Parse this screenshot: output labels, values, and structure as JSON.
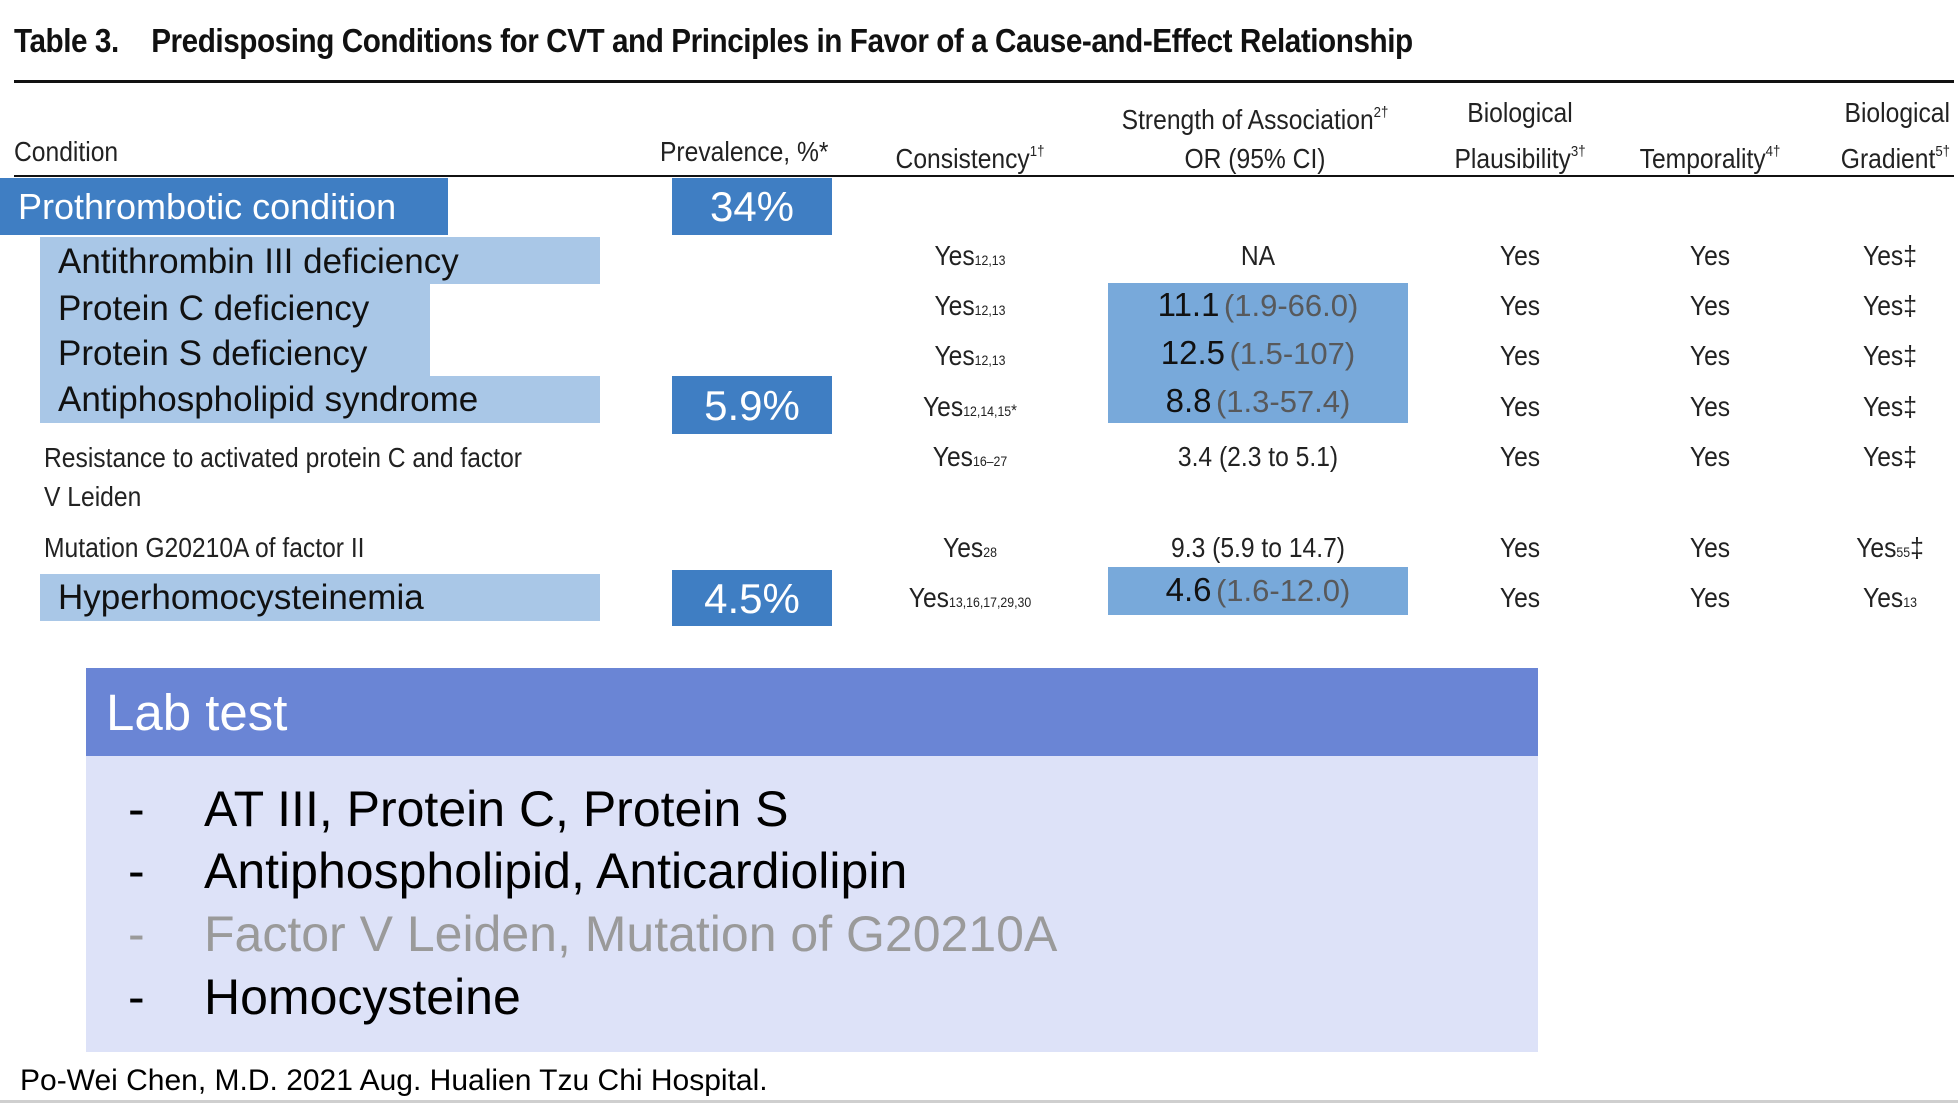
{
  "table": {
    "number": "Table 3.",
    "title": "Predisposing Conditions for CVT and Principles in Favor of a Cause-and-Effect Relationship"
  },
  "headers": {
    "condition": "Condition",
    "prevalence": "Prevalence, %*",
    "consistency": "Consistency",
    "consistency_mark": "1†",
    "strength_line1": "Strength of Association",
    "strength_mark": "2†",
    "strength_line2": "OR (95% CI)",
    "plausibility_line1": "Biological",
    "plausibility_line2": "Plausibility",
    "plausibility_mark": "3†",
    "temporality": "Temporality",
    "temporality_mark": "4†",
    "gradient_line1": "Biological",
    "gradient_line2": "Gradient",
    "gradient_mark": "5†"
  },
  "group": {
    "label": "Prothrombotic condition",
    "prevalence": "34%"
  },
  "rows": [
    {
      "condition": "Antithrombin III deficiency",
      "consistency": "Yes",
      "consistency_refs": "12,13",
      "or": "NA",
      "or_ci": "",
      "plausibility": "Yes",
      "temporality": "Yes",
      "gradient": "Yes‡",
      "gradient_refs": ""
    },
    {
      "condition": "Protein C deficiency",
      "consistency": "Yes",
      "consistency_refs": "12,13",
      "or": "11.1",
      "or_ci": "(1.9-66.0)",
      "plausibility": "Yes",
      "temporality": "Yes",
      "gradient": "Yes‡",
      "gradient_refs": ""
    },
    {
      "condition": "Protein S deficiency",
      "consistency": "Yes",
      "consistency_refs": "12,13",
      "or": "12.5",
      "or_ci": "(1.5-107)",
      "plausibility": "Yes",
      "temporality": "Yes",
      "gradient": "Yes‡",
      "gradient_refs": ""
    },
    {
      "condition": "Antiphospholipid syndrome",
      "prevalence": "5.9%",
      "consistency": "Yes",
      "consistency_refs": "12,14,15",
      "consistency_mark": "*",
      "or": "8.8",
      "or_ci": "(1.3-57.4)",
      "plausibility": "Yes",
      "temporality": "Yes",
      "gradient": "Yes‡",
      "gradient_refs": ""
    },
    {
      "condition_line1": "Resistance to activated protein C and factor",
      "condition_line2": "V Leiden",
      "consistency": "Yes",
      "consistency_refs": "16–27",
      "or": "3.4 (2.3 to 5.1)",
      "plausibility": "Yes",
      "temporality": "Yes",
      "gradient": "Yes‡",
      "gradient_refs": ""
    },
    {
      "condition": "Mutation G20210A of factor II",
      "consistency": "Yes",
      "consistency_refs": "28",
      "or": "9.3 (5.9 to 14.7)",
      "plausibility": "Yes",
      "temporality": "Yes",
      "gradient": "Yes",
      "gradient_refs": "55",
      "gradient_mark": "‡"
    },
    {
      "condition": "Hyperhomocysteinemia",
      "prevalence": "4.5%",
      "consistency": "Yes",
      "consistency_refs": "13,16,17,29,30",
      "or": "4.6",
      "or_ci": "(1.6-12.0)",
      "plausibility": "Yes",
      "temporality": "Yes",
      "gradient": "Yes",
      "gradient_refs": "13"
    }
  ],
  "lab": {
    "title": "Lab test",
    "items": [
      {
        "dash": "-",
        "text": "AT III, Protein C, Protein S"
      },
      {
        "dash": "-",
        "text": "Antiphospholipid, Anticardiolipin"
      },
      {
        "dash": "-",
        "text": "Factor V Leiden, Mutation of G20210A"
      },
      {
        "dash": "-",
        "text": "Homocysteine"
      }
    ]
  },
  "credit": "Po-Wei Chen, M.D. 2021 Aug. Hualien Tzu Chi Hospital.",
  "colors": {
    "highlight_dark": "#3f7ec3",
    "highlight_light": "#a9c7e7",
    "highlight_mid": "#78a9da",
    "lab_header": "#6a85d5",
    "lab_body": "#dde2f8",
    "muted_text": "#9a9a9a"
  }
}
